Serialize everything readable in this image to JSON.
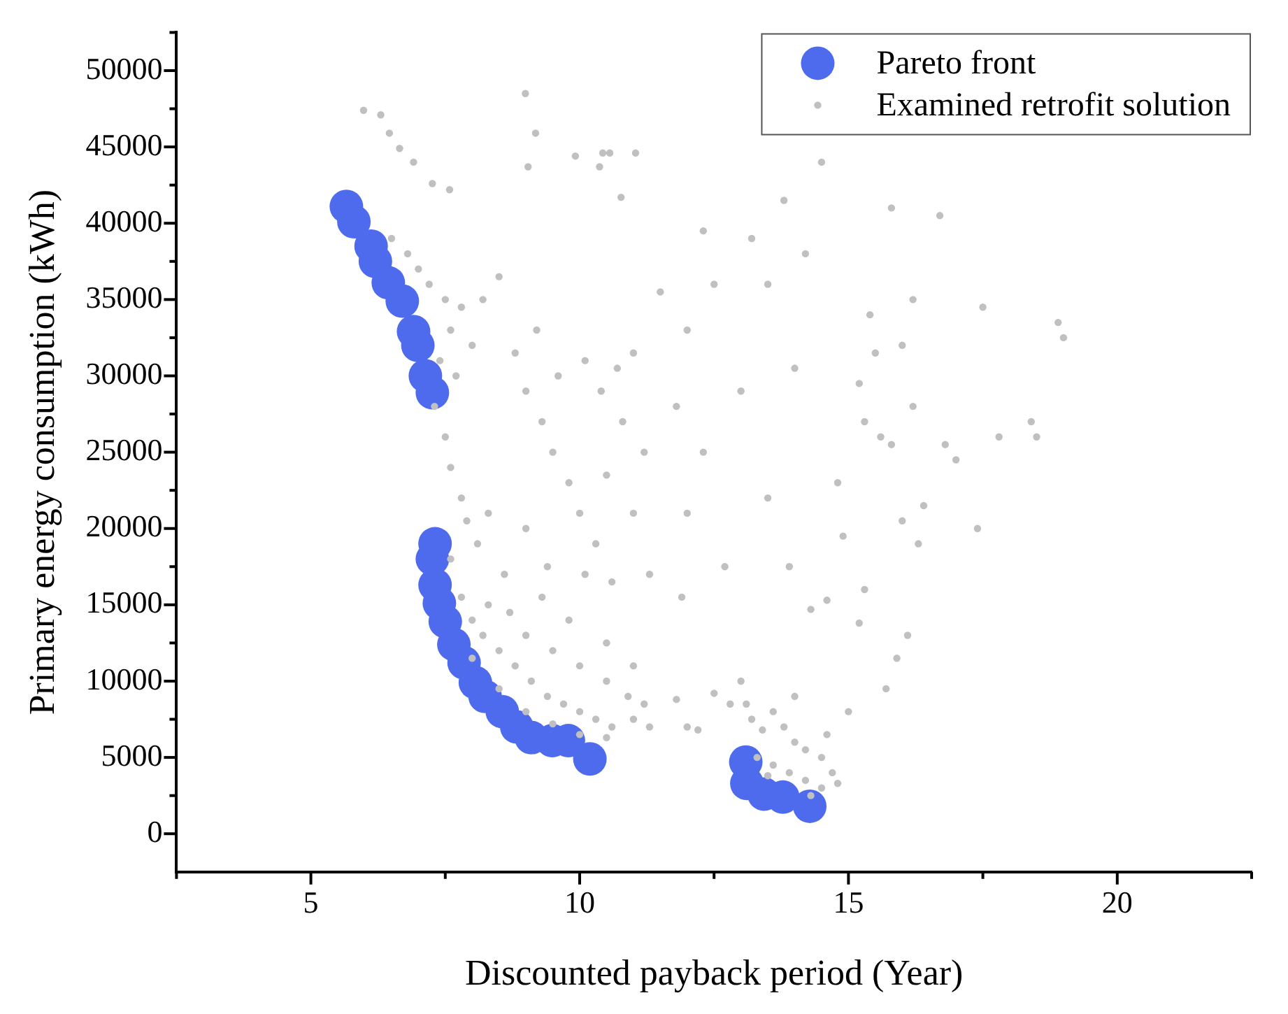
{
  "chart_data": {
    "type": "scatter",
    "xlabel": "Discounted payback period (Year)",
    "ylabel": "Primary energy consumption (kWh)",
    "xlim": [
      2.5,
      22.5
    ],
    "ylim": [
      -2500,
      52500
    ],
    "xticks": [
      {
        "value": 2.5,
        "label": null
      },
      5,
      {
        "value": 7.5,
        "label": null
      },
      10,
      {
        "value": 12.5,
        "label": null
      },
      15,
      {
        "value": 17.5,
        "label": null
      },
      20,
      {
        "value": 22.5,
        "label": null
      }
    ],
    "yticks": [
      0,
      {
        "value": 2500,
        "label": null
      },
      5000,
      {
        "value": 7500,
        "label": null
      },
      10000,
      {
        "value": 12500,
        "label": null
      },
      15000,
      {
        "value": 17500,
        "label": null
      },
      20000,
      {
        "value": 22500,
        "label": null
      },
      25000,
      {
        "value": 27500,
        "label": null
      },
      30000,
      {
        "value": 32500,
        "label": null
      },
      35000,
      {
        "value": 37500,
        "label": null
      },
      40000,
      {
        "value": 42500,
        "label": null
      },
      45000,
      {
        "value": 47500,
        "label": null
      },
      50000,
      {
        "value": 52500,
        "label": null
      }
    ],
    "grid": false,
    "legend": "top right",
    "marker": "circle",
    "series": [
      {
        "name": "Examined retrofit solution",
        "color": "#c0c0c0",
        "x": [
          5.98,
          6.3,
          6.46,
          6.65,
          6.91,
          7.26,
          7.58,
          8.99,
          9.18,
          9.04,
          10.43,
          10.56,
          10.37,
          10.77,
          11.04,
          9.92,
          6.5,
          6.8,
          7.0,
          7.2,
          7.5,
          7.8,
          7.6,
          7.4,
          7.7,
          8.0,
          8.2,
          8.5,
          7.3,
          7.5,
          7.6,
          7.8,
          7.9,
          8.1,
          8.3,
          8.8,
          9.0,
          9.3,
          9.5,
          9.8,
          10.0,
          10.3,
          9.2,
          9.6,
          10.1,
          10.4,
          10.7,
          11.0,
          10.8,
          11.2,
          10.5,
          11.0,
          9.0,
          8.6,
          9.4,
          10.1,
          10.6,
          11.3,
          11.5,
          12.0,
          11.8,
          12.5,
          12.3,
          12.0,
          11.9,
          12.7,
          13.2,
          13.5,
          13.8,
          14.2,
          14.0,
          13.0,
          13.5,
          13.9,
          14.3,
          14.6,
          14.8,
          14.9,
          15.2,
          15.2,
          15.5,
          15.3,
          15.6,
          15.8,
          16.0,
          16.2,
          16.0,
          16.3,
          16.4,
          16.7,
          16.8,
          17.0,
          17.4,
          17.5,
          17.8,
          18.4,
          18.5,
          18.9,
          19.0,
          15.7,
          15.9,
          16.1,
          15.3,
          15.0,
          15.4,
          16.2,
          14.5,
          15.8,
          12.3,
          7.6,
          7.8,
          8.0,
          8.2,
          8.5,
          8.8,
          9.1,
          9.4,
          9.7,
          10.0,
          10.3,
          10.6,
          11.0,
          11.3,
          8.3,
          8.7,
          9.0,
          9.5,
          10.0,
          10.5,
          10.9,
          11.2,
          9.3,
          9.8,
          10.5,
          11.0,
          8.0,
          8.5,
          9.0,
          9.5,
          10.0,
          10.5,
          11.8,
          12.0,
          12.2,
          13.0,
          13.1,
          13.2,
          13.4,
          13.6,
          13.8,
          14.0,
          14.2,
          14.5,
          14.7,
          14.8,
          13.3,
          13.6,
          13.9,
          14.2,
          14.5,
          14.3,
          13.5,
          14.0,
          14.6,
          12.8,
          12.5
        ],
        "values": [
          47400,
          47100,
          45900,
          44900,
          44000,
          42600,
          42200,
          48500,
          45900,
          43700,
          44600,
          44600,
          43700,
          41700,
          44600,
          44400,
          39000,
          38000,
          37000,
          36000,
          35000,
          34500,
          33000,
          31000,
          30000,
          32000,
          35000,
          36500,
          28000,
          26000,
          24000,
          22000,
          20500,
          19000,
          21000,
          31500,
          29000,
          27000,
          25000,
          23000,
          21000,
          19000,
          33000,
          30000,
          31000,
          29000,
          30500,
          31500,
          27000,
          25000,
          23500,
          21000,
          20000,
          17000,
          17500,
          17000,
          16500,
          17000,
          35500,
          33000,
          28000,
          36000,
          25000,
          21000,
          15500,
          17500,
          39000,
          36000,
          41500,
          38000,
          30500,
          29000,
          22000,
          17500,
          14700,
          15300,
          23000,
          19500,
          13800,
          29500,
          31500,
          27000,
          26000,
          25500,
          32000,
          28000,
          20500,
          19000,
          21500,
          40500,
          25500,
          24500,
          20000,
          34500,
          26000,
          27000,
          26000,
          33500,
          32500,
          9500,
          11500,
          13000,
          16000,
          8000,
          34000,
          35000,
          44000,
          41000,
          39500,
          18000,
          15500,
          14000,
          13000,
          12000,
          11000,
          10000,
          9000,
          8500,
          8000,
          7500,
          7000,
          7500,
          7000,
          15000,
          14500,
          13000,
          12000,
          11000,
          10000,
          9000,
          8500,
          15500,
          14000,
          12500,
          11000,
          11500,
          9500,
          8000,
          7200,
          6500,
          6300,
          8800,
          7000,
          6800,
          10000,
          8500,
          7500,
          6800,
          8000,
          7000,
          6000,
          5500,
          5000,
          4000,
          3300,
          5000,
          4500,
          4000,
          3500,
          3000,
          2500,
          3800,
          9000,
          6500,
          8500,
          9200
        ]
      },
      {
        "name": "Pareto front",
        "color": "#4f6bed",
        "x": [
          5.66,
          5.8,
          6.12,
          6.2,
          6.44,
          6.7,
          6.91,
          6.99,
          7.13,
          7.26,
          7.31,
          7.26,
          7.31,
          7.39,
          7.5,
          7.66,
          7.85,
          8.06,
          8.24,
          8.56,
          8.83,
          9.1,
          9.49,
          9.79,
          10.19,
          13.09,
          13.11,
          13.43,
          13.78,
          14.28
        ],
        "values": [
          41100,
          40100,
          38500,
          37500,
          36100,
          34900,
          32900,
          32000,
          30000,
          28900,
          19000,
          18000,
          16300,
          15100,
          13900,
          12400,
          11200,
          9900,
          9000,
          8000,
          7000,
          6300,
          6100,
          6100,
          4900,
          4700,
          3300,
          2600,
          2400,
          1800
        ]
      }
    ]
  }
}
